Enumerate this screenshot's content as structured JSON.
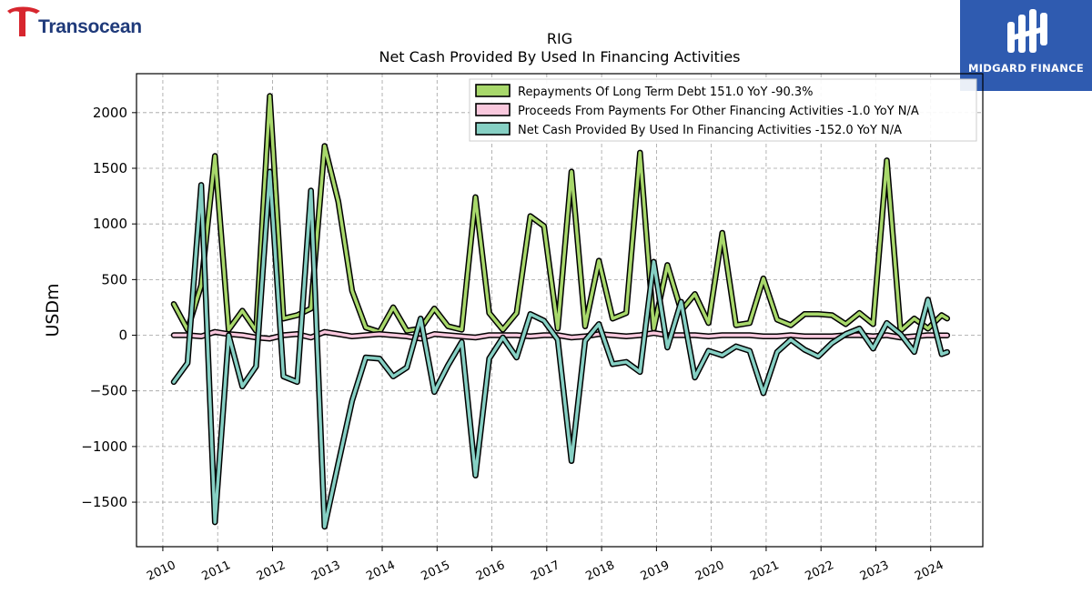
{
  "branding": {
    "left_logo_text": "Transocean",
    "right_logo_text": "MIDGARD FINANCE",
    "right_logo_bg": "#2f5bb0",
    "left_logo_color": "#1f3a7a",
    "left_logo_accent": "#d7262e"
  },
  "chart_data": {
    "type": "line",
    "title": "RIG",
    "subtitle": "Net Cash Provided By Used In Financing Activities",
    "ylabel": "USDm",
    "xlabel": "",
    "ylim": [
      -1900,
      2350
    ],
    "xlim": [
      2009.52,
      2024.95
    ],
    "yticks": [
      -1500,
      -1000,
      -500,
      0,
      500,
      1000,
      1500,
      2000
    ],
    "ytick_labels": [
      "−1500",
      "−1000",
      "−500",
      "0",
      "500",
      "1000",
      "1500",
      "2000"
    ],
    "xticks": [
      2010,
      2011,
      2012,
      2013,
      2014,
      2015,
      2016,
      2017,
      2018,
      2019,
      2020,
      2021,
      2022,
      2023,
      2024
    ],
    "xtick_labels": [
      "2010",
      "2011",
      "2012",
      "2013",
      "2014",
      "2015",
      "2016",
      "2017",
      "2018",
      "2019",
      "2020",
      "2021",
      "2022",
      "2023",
      "2024"
    ],
    "grid": true,
    "legend_position": "top-right",
    "x": [
      2010.2,
      2010.45,
      2010.7,
      2010.95,
      2011.2,
      2011.45,
      2011.7,
      2011.95,
      2012.2,
      2012.45,
      2012.7,
      2012.95,
      2013.2,
      2013.45,
      2013.7,
      2013.95,
      2014.2,
      2014.45,
      2014.7,
      2014.95,
      2015.2,
      2015.45,
      2015.7,
      2015.95,
      2016.2,
      2016.45,
      2016.7,
      2016.95,
      2017.2,
      2017.45,
      2017.7,
      2017.95,
      2018.2,
      2018.45,
      2018.7,
      2018.95,
      2019.2,
      2019.45,
      2019.7,
      2019.95,
      2020.2,
      2020.45,
      2020.7,
      2020.95,
      2021.2,
      2021.45,
      2021.7,
      2021.95,
      2022.2,
      2022.45,
      2022.7,
      2022.95,
      2023.2,
      2023.45,
      2023.7,
      2023.95,
      2024.2,
      2024.3
    ],
    "series": [
      {
        "name": "Repayments Of Long Term Debt  151.0 YoY -90.3%",
        "color": "#a8d86b",
        "values": [
          280,
          50,
          450,
          1610,
          50,
          220,
          40,
          2150,
          150,
          180,
          240,
          1700,
          1200,
          400,
          70,
          30,
          250,
          40,
          60,
          240,
          80,
          50,
          1240,
          200,
          50,
          200,
          1070,
          980,
          60,
          1470,
          80,
          670,
          150,
          200,
          1640,
          60,
          630,
          220,
          370,
          110,
          920,
          90,
          110,
          510,
          140,
          90,
          190,
          190,
          180,
          100,
          200,
          100,
          1570,
          40,
          150,
          60,
          180,
          151
        ]
      },
      {
        "name": "Proceeds From Payments For Other Financing Activities  -1.0 YoY N/A",
        "color": "#f9c8dd",
        "values": [
          0,
          0,
          -10,
          30,
          10,
          0,
          -20,
          -30,
          0,
          10,
          -20,
          30,
          10,
          -10,
          0,
          10,
          0,
          -10,
          -30,
          10,
          0,
          -10,
          -20,
          0,
          0,
          0,
          -10,
          0,
          0,
          -20,
          -10,
          10,
          0,
          -10,
          0,
          20,
          0,
          0,
          0,
          -10,
          0,
          0,
          0,
          -10,
          -10,
          0,
          -10,
          -10,
          -10,
          0,
          0,
          -10,
          0,
          -20,
          -10,
          0,
          -1,
          -1
        ]
      },
      {
        "name": "Net Cash Provided By Used In Financing Activities  -152.0 YoY N/A",
        "color": "#86d0c4",
        "values": [
          -420,
          -250,
          1350,
          -1680,
          0,
          -460,
          -280,
          1470,
          -370,
          -420,
          1300,
          -1720,
          -1150,
          -590,
          -200,
          -210,
          -370,
          -290,
          150,
          -510,
          -270,
          -60,
          -1260,
          -210,
          -20,
          -200,
          190,
          130,
          -40,
          -1130,
          -50,
          100,
          -260,
          -240,
          -330,
          660,
          -110,
          300,
          -380,
          -140,
          -180,
          -100,
          -140,
          -520,
          -150,
          -40,
          -130,
          -190,
          -70,
          10,
          60,
          -120,
          110,
          10,
          -150,
          320,
          -170,
          -152
        ]
      }
    ]
  }
}
